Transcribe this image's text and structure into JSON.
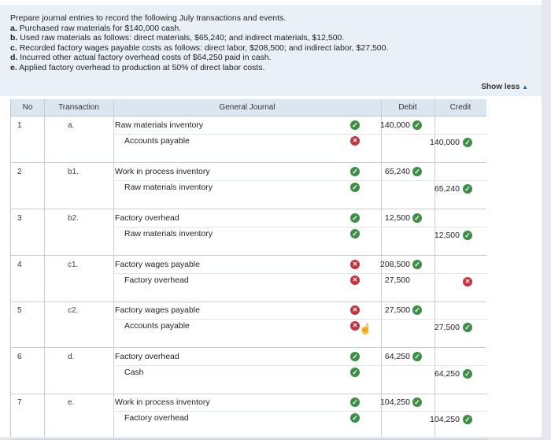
{
  "instructions": {
    "intro": "Prepare journal entries to record the following July transactions and events.",
    "items": [
      {
        "letter": "a.",
        "text": "Purchased raw materials for $140,000 cash."
      },
      {
        "letter": "b.",
        "text": "Used raw materials as follows: direct materials, $65,240; and indirect materials, $12,500."
      },
      {
        "letter": "c.",
        "text": "Recorded factory wages payable costs as follows: direct labor, $208,500; and indirect labor, $27,500."
      },
      {
        "letter": "d.",
        "text": "Incurred other actual factory overhead costs of $64,250 paid in cash."
      },
      {
        "letter": "e.",
        "text": "Applied factory overhead to production at 50% of direct labor costs."
      }
    ],
    "show_less": "Show less"
  },
  "table": {
    "headers": {
      "no": "No",
      "transaction": "Transaction",
      "journal": "General Journal",
      "debit": "Debit",
      "credit": "Credit"
    },
    "rows": [
      {
        "no": "1",
        "txn": "a.",
        "lines": [
          {
            "account": "Raw materials inventory",
            "status": "ok",
            "debit": "140,000",
            "debit_status": "ok",
            "credit": "",
            "credit_status": ""
          },
          {
            "account": "Accounts payable",
            "status": "bad",
            "debit": "",
            "debit_status": "",
            "credit": "140,000",
            "credit_status": "ok"
          }
        ]
      },
      {
        "no": "2",
        "txn": "b1.",
        "lines": [
          {
            "account": "Work in process inventory",
            "status": "ok",
            "debit": "65,240",
            "debit_status": "ok",
            "credit": "",
            "credit_status": ""
          },
          {
            "account": "Raw materials inventory",
            "status": "ok",
            "debit": "",
            "debit_status": "",
            "credit": "65,240",
            "credit_status": "ok"
          }
        ]
      },
      {
        "no": "3",
        "txn": "b2.",
        "lines": [
          {
            "account": "Factory overhead",
            "status": "ok",
            "debit": "12,500",
            "debit_status": "ok",
            "credit": "",
            "credit_status": ""
          },
          {
            "account": "Raw materials inventory",
            "status": "ok",
            "debit": "",
            "debit_status": "",
            "credit": "12,500",
            "credit_status": "ok"
          }
        ]
      },
      {
        "no": "4",
        "txn": "c1.",
        "lines": [
          {
            "account": "Factory wages payable",
            "status": "bad",
            "debit": "208,500",
            "debit_status": "ok",
            "credit": "",
            "credit_status": ""
          },
          {
            "account": "Factory overhead",
            "status": "bad",
            "debit": "27,500",
            "debit_status": "",
            "credit": "",
            "credit_status": "bad"
          }
        ]
      },
      {
        "no": "5",
        "txn": "c2.",
        "lines": [
          {
            "account": "Factory wages payable",
            "status": "bad",
            "debit": "27,500",
            "debit_status": "ok",
            "credit": "",
            "credit_status": ""
          },
          {
            "account": "Accounts payable",
            "status": "bad",
            "debit": "",
            "debit_status": "",
            "credit": "27,500",
            "credit_status": "ok"
          }
        ]
      },
      {
        "no": "6",
        "txn": "d.",
        "lines": [
          {
            "account": "Factory overhead",
            "status": "ok",
            "debit": "64,250",
            "debit_status": "ok",
            "credit": "",
            "credit_status": ""
          },
          {
            "account": "Cash",
            "status": "ok",
            "debit": "",
            "debit_status": "",
            "credit": "64,250",
            "credit_status": "ok"
          }
        ]
      },
      {
        "no": "7",
        "txn": "e.",
        "lines": [
          {
            "account": "Work in process inventory",
            "status": "ok",
            "debit": "104,250",
            "debit_status": "ok",
            "credit": "",
            "credit_status": ""
          },
          {
            "account": "Factory overhead",
            "status": "ok",
            "debit": "",
            "debit_status": "",
            "credit": "104,250",
            "credit_status": "ok"
          }
        ]
      }
    ]
  },
  "colors": {
    "ok": "#3d8f46",
    "bad": "#c9313f",
    "header_bg": "#dce6f1",
    "instructions_bg": "#e9f0f7"
  },
  "icons": {
    "ok": "check-circle-icon",
    "bad": "x-circle-icon"
  }
}
